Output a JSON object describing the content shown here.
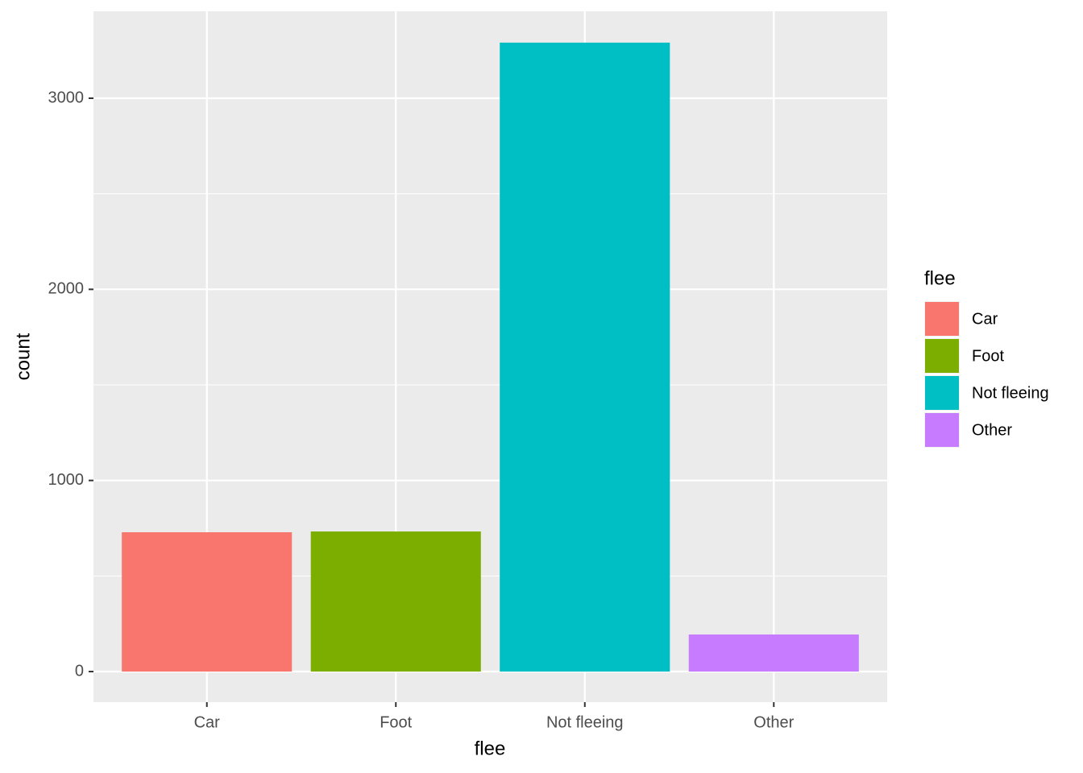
{
  "chart_data": {
    "type": "bar",
    "x_label": "flee",
    "y_label": "count",
    "legend_title": "flee",
    "categories": [
      "Car",
      "Foot",
      "Not fleeing",
      "Other"
    ],
    "values": [
      729,
      733,
      3291,
      194
    ],
    "colors": [
      "#f8766d",
      "#7cae00",
      "#00bfc4",
      "#c77cff"
    ],
    "ylim": [
      -160,
      3455
    ],
    "yticks": [
      0,
      1000,
      2000,
      3000
    ],
    "grid": true
  }
}
